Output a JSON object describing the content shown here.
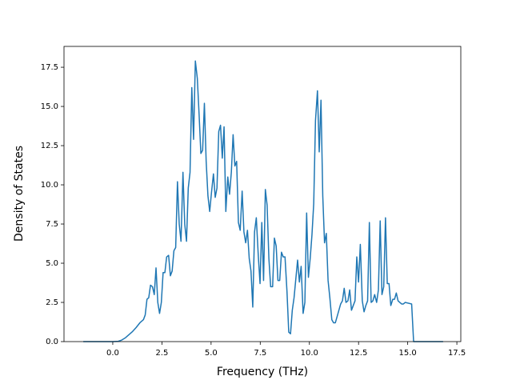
{
  "chart_data": {
    "type": "line",
    "xlabel": "Frequency (THz)",
    "ylabel": "Density of States",
    "color": "#1f77b4",
    "xlim": [
      -2.48,
      17.7
    ],
    "ylim": [
      0,
      18.83
    ],
    "xticks": [
      {
        "value": 0,
        "label": "0.0"
      },
      {
        "value": 2.5,
        "label": "2.5"
      },
      {
        "value": 5,
        "label": "5.0"
      },
      {
        "value": 7.5,
        "label": "7.5"
      },
      {
        "value": 10,
        "label": "10.0"
      },
      {
        "value": 12.5,
        "label": "12.5"
      },
      {
        "value": 15,
        "label": "15.0"
      },
      {
        "value": 17.5,
        "label": "17.5"
      }
    ],
    "yticks": [
      {
        "value": 0,
        "label": "0.0"
      },
      {
        "value": 2.5,
        "label": "2.5"
      },
      {
        "value": 5,
        "label": "5.0"
      },
      {
        "value": 7.5,
        "label": "7.5"
      },
      {
        "value": 10,
        "label": "10.0"
      },
      {
        "value": 12.5,
        "label": "12.5"
      },
      {
        "value": 15,
        "label": "15.0"
      },
      {
        "value": 17.5,
        "label": "17.5"
      }
    ],
    "x": [
      -1.5,
      0.0,
      0.28,
      0.46,
      0.65,
      0.83,
      1.01,
      1.19,
      1.38,
      1.56,
      1.65,
      1.74,
      1.83,
      1.92,
      2.02,
      2.11,
      2.2,
      2.29,
      2.38,
      2.47,
      2.56,
      2.65,
      2.74,
      2.84,
      2.93,
      3.02,
      3.11,
      3.2,
      3.29,
      3.38,
      3.47,
      3.57,
      3.66,
      3.75,
      3.84,
      3.93,
      4.02,
      4.11,
      4.2,
      4.3,
      4.39,
      4.48,
      4.57,
      4.66,
      4.75,
      4.84,
      4.93,
      5.02,
      5.12,
      5.21,
      5.3,
      5.39,
      5.48,
      5.57,
      5.66,
      5.75,
      5.85,
      5.94,
      6.03,
      6.12,
      6.21,
      6.3,
      6.39,
      6.48,
      6.58,
      6.67,
      6.76,
      6.85,
      6.94,
      7.03,
      7.12,
      7.21,
      7.3,
      7.4,
      7.49,
      7.58,
      7.67,
      7.76,
      7.85,
      7.94,
      8.03,
      8.13,
      8.22,
      8.31,
      8.4,
      8.49,
      8.58,
      8.67,
      8.76,
      8.86,
      8.95,
      9.04,
      9.13,
      9.22,
      9.4,
      9.49,
      9.58,
      9.68,
      9.77,
      9.86,
      9.95,
      10.04,
      10.13,
      10.22,
      10.31,
      10.41,
      10.5,
      10.59,
      10.68,
      10.77,
      10.86,
      10.95,
      11.04,
      11.14,
      11.23,
      11.32,
      11.41,
      11.5,
      11.59,
      11.68,
      11.77,
      11.86,
      11.96,
      12.05,
      12.14,
      12.23,
      12.32,
      12.41,
      12.5,
      12.59,
      12.69,
      12.78,
      12.87,
      12.96,
      13.05,
      13.14,
      13.23,
      13.32,
      13.42,
      13.51,
      13.6,
      13.69,
      13.78,
      13.87,
      13.96,
      14.05,
      14.14,
      14.24,
      14.33,
      14.42,
      14.51,
      14.6,
      14.69,
      14.78,
      14.87,
      15.2,
      15.3,
      16.8
    ],
    "values": [
      0,
      0,
      0.02,
      0.1,
      0.25,
      0.45,
      0.65,
      0.9,
      1.2,
      1.4,
      1.7,
      2.7,
      2.8,
      3.6,
      3.5,
      3.0,
      4.7,
      2.5,
      1.8,
      2.5,
      4.4,
      4.4,
      5.4,
      5.5,
      4.2,
      4.5,
      5.8,
      6.0,
      10.2,
      7.5,
      6.4,
      10.8,
      7.5,
      6.4,
      9.8,
      10.8,
      16.2,
      12.9,
      17.9,
      16.8,
      14.5,
      12.0,
      12.2,
      15.2,
      11.5,
      9.3,
      8.3,
      9.5,
      10.7,
      9.2,
      9.8,
      13.4,
      13.8,
      11.7,
      13.7,
      8.3,
      10.5,
      9.4,
      10.8,
      13.2,
      11.2,
      11.5,
      7.6,
      7.1,
      9.6,
      7.0,
      6.3,
      7.1,
      5.3,
      4.5,
      2.2,
      7.0,
      7.9,
      5.5,
      3.7,
      7.6,
      3.9,
      9.7,
      8.7,
      5.3,
      3.5,
      3.5,
      6.6,
      6.1,
      3.9,
      3.9,
      5.7,
      5.4,
      5.4,
      3.2,
      0.6,
      0.5,
      2.0,
      2.8,
      5.2,
      3.8,
      4.8,
      1.8,
      2.5,
      8.2,
      4.1,
      5.3,
      6.8,
      8.8,
      14.1,
      16.0,
      12.1,
      15.4,
      9.3,
      6.3,
      6.9,
      3.9,
      2.8,
      1.4,
      1.2,
      1.2,
      1.6,
      2.0,
      2.4,
      2.6,
      3.4,
      2.5,
      2.6,
      3.3,
      2.0,
      2.3,
      2.6,
      5.4,
      3.8,
      6.2,
      2.6,
      1.9,
      2.3,
      2.6,
      7.6,
      2.5,
      2.6,
      3.0,
      2.5,
      3.3,
      7.7,
      3.0,
      3.5,
      7.9,
      3.7,
      3.7,
      2.3,
      2.7,
      2.7,
      3.1,
      2.6,
      2.5,
      2.4,
      2.4,
      2.5,
      2.4,
      0,
      0
    ]
  }
}
